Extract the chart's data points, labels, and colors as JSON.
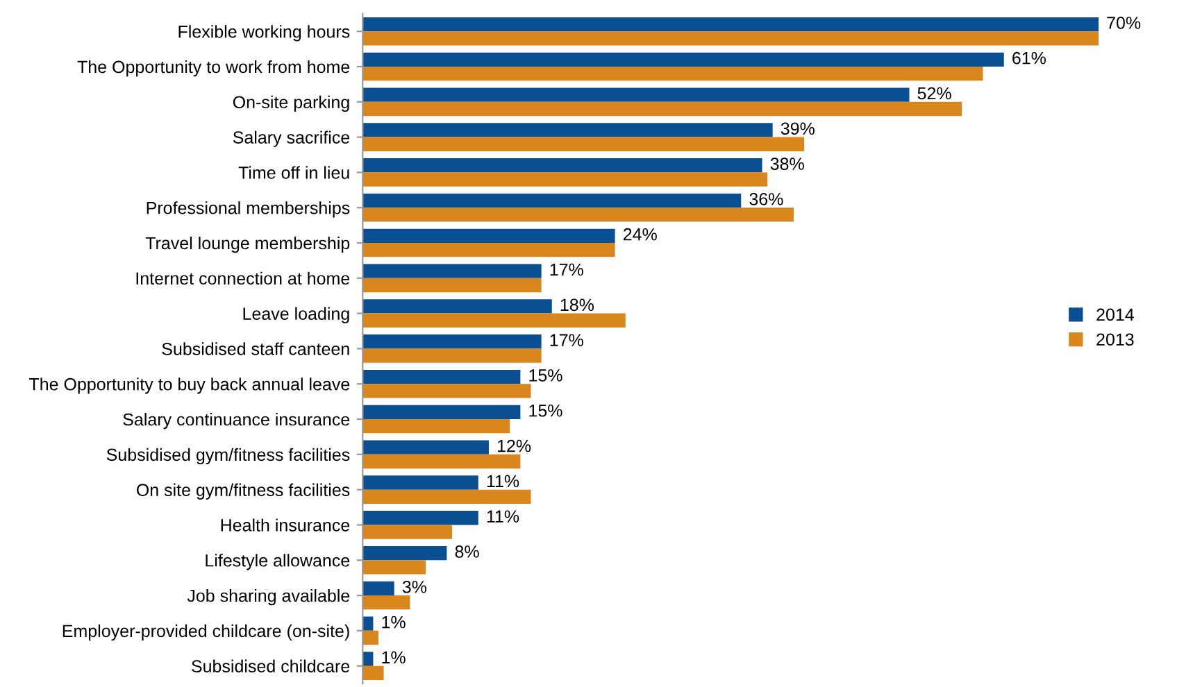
{
  "chart_data": {
    "type": "bar",
    "orientation": "horizontal",
    "legend": "right",
    "grid": false,
    "tick_labels": "y",
    "categories": [
      "Flexible working hours",
      "The Opportunity to work from home",
      "On-site parking",
      "Salary sacrifice",
      "Time off in lieu",
      "Professional memberships",
      "Travel lounge membership",
      "Internet connection at home",
      "Leave loading",
      "Subsidised staff canteen",
      "The Opportunity to buy back annual leave",
      "Salary continuance insurance",
      "Subsidised gym/fitness facilities",
      "On site gym/fitness facilities",
      "Health insurance",
      "Lifestyle allowance",
      "Job sharing available",
      "Employer-provided childcare (on-site)",
      "Subsidised childcare"
    ],
    "series": [
      {
        "name": "2014",
        "color": "#0b4f93",
        "values": [
          70,
          61,
          52,
          39,
          38,
          36,
          24,
          17,
          18,
          17,
          15,
          15,
          12,
          11,
          11,
          8,
          3,
          1,
          1
        ],
        "value_labels": [
          "70%",
          "61%",
          "52%",
          "39%",
          "38%",
          "36%",
          "24%",
          "17%",
          "18%",
          "17%",
          "15%",
          "15%",
          "12%",
          "11%",
          "11%",
          "8%",
          "3%",
          "1%",
          "1%"
        ]
      },
      {
        "name": "2013",
        "color": "#d9861c",
        "values": [
          70,
          59,
          57,
          42,
          38.5,
          41,
          24,
          17,
          25,
          17,
          16,
          14,
          15,
          16,
          8.5,
          6,
          4.5,
          1.5,
          2
        ]
      }
    ]
  }
}
